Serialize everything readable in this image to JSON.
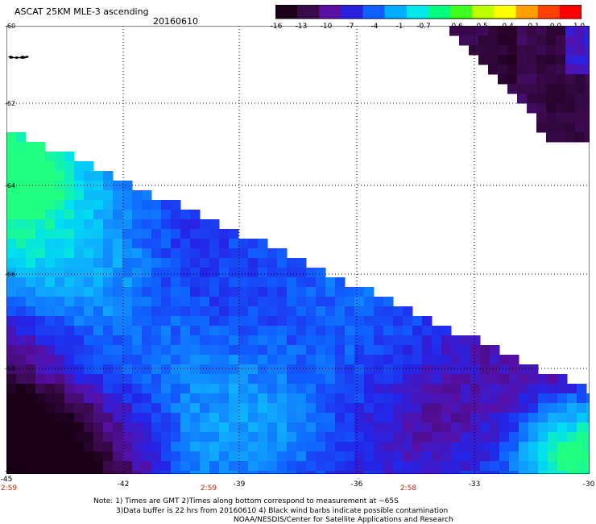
{
  "header": {
    "title": "ASCAT 25KM MLE-3 ascending",
    "date": "20160610"
  },
  "colorbar": {
    "labels": [
      "-16",
      "-13",
      "-10",
      "-7",
      "-4",
      "-1",
      "-0.7",
      "-0.6",
      "-0.5",
      "-0.4",
      "-0.1",
      "0.0",
      "1.0"
    ],
    "colors": [
      "#1a0018",
      "#3a0a4a",
      "#5a10a0",
      "#2a20e0",
      "#1060ff",
      "#00b0ff",
      "#00e8e8",
      "#00ff80",
      "#40ff20",
      "#c0ff00",
      "#ffff00",
      "#ffa000",
      "#ff4000",
      "#ff0000"
    ]
  },
  "axes": {
    "lat_labels": [
      "-60",
      "-62",
      "-64",
      "-66",
      "-68",
      "-70"
    ],
    "lon_labels": [
      "-45",
      "-42",
      "-39",
      "-36",
      "-33",
      "-30"
    ],
    "time_labels": [
      "2:59",
      "2:59",
      "2:58"
    ]
  },
  "notes": {
    "line1": "Note: 1) Times are GMT 2)Times along bottom correspond to measurement at ~65S",
    "line2": "3)Data buffer is 22 hrs from 20160610 4) Black wind barbs indicate possible contamination",
    "line3": "NOAA/NESDIS/Center for Satellite Applications and Research"
  }
}
